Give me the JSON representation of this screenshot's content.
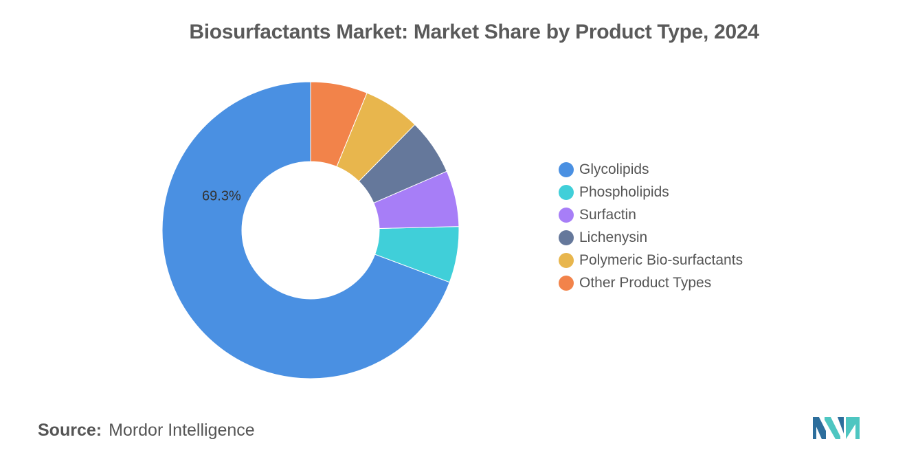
{
  "chart_data": {
    "type": "pie",
    "title": "Biosurfactants Market: Market Share by Product Type, 2024",
    "categories": [
      "Glycolipids",
      "Phospholipids",
      "Surfactin",
      "Lichenysin",
      "Polymeric Bio-surfactants",
      "Other Product Types"
    ],
    "values": [
      69.3,
      6.1,
      6.1,
      6.1,
      6.2,
      6.2
    ],
    "data_labels": [
      "69.3%",
      "",
      "",
      "",
      "",
      ""
    ],
    "colors": [
      "#4a90e2",
      "#40cfd9",
      "#a77ef7",
      "#65789b",
      "#e8b64d",
      "#f2834a"
    ],
    "legend_position": "right"
  },
  "source": {
    "label": "Source:",
    "value": "Mordor Intelligence"
  },
  "logo": {
    "icon": "mordor-intelligence-logo",
    "colors": [
      "#2d6e9c",
      "#4ec6c1"
    ]
  }
}
